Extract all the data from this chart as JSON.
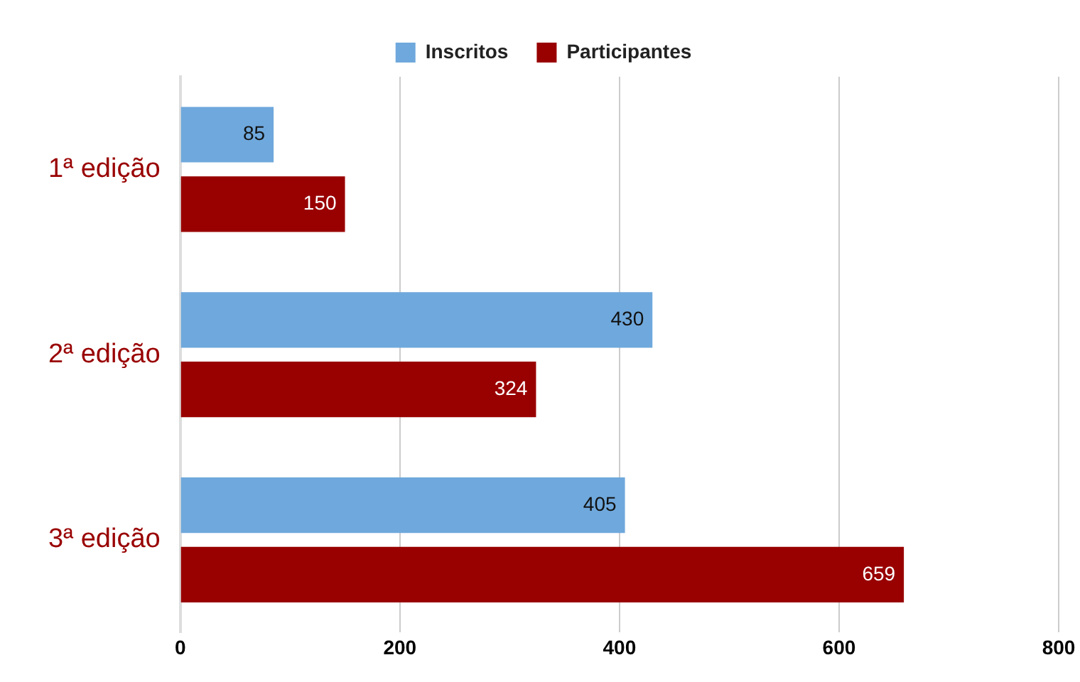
{
  "chart_data": {
    "type": "bar",
    "orientation": "horizontal",
    "categories": [
      "1ª edição",
      "2ª edição",
      "3ª edição"
    ],
    "series": [
      {
        "name": "Inscritos",
        "color": "#6fa8dc",
        "values": [
          85,
          430,
          405
        ]
      },
      {
        "name": "Participantes",
        "color": "#990000",
        "values": [
          150,
          324,
          659
        ]
      }
    ],
    "xlim": [
      0,
      800
    ],
    "xticks": [
      0,
      200,
      400,
      600,
      800
    ],
    "grid": "x",
    "legend": "top",
    "data_labels": true
  }
}
